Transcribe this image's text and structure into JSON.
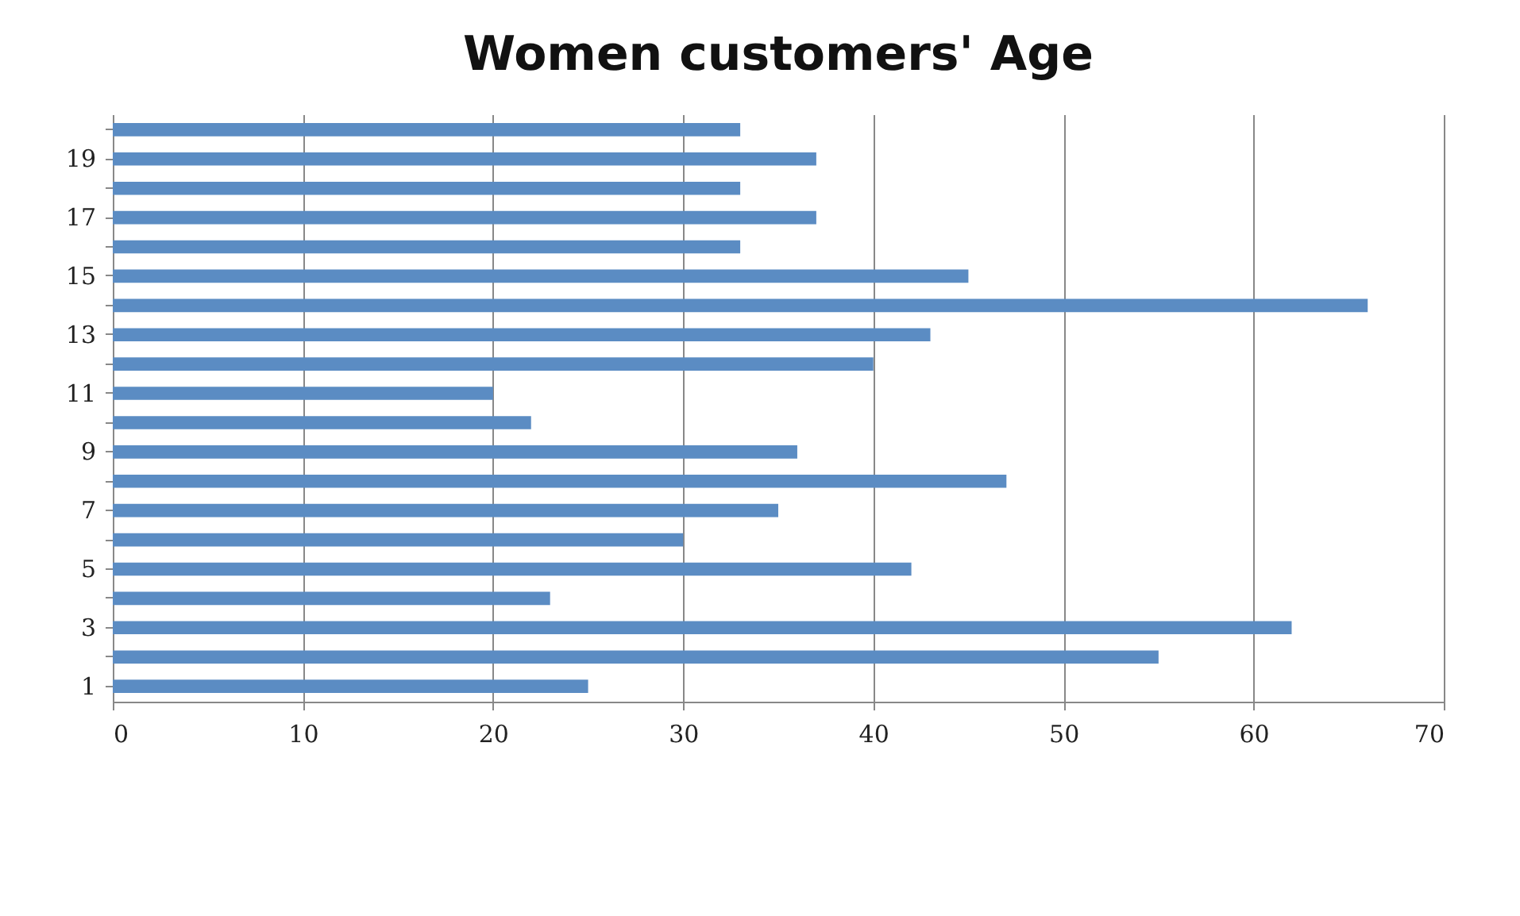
{
  "chart_data": {
    "type": "bar",
    "orientation": "horizontal",
    "title": "Women customers' Age",
    "categories": [
      null,
      "19",
      null,
      "17",
      null,
      "15",
      null,
      "13",
      null,
      "11",
      null,
      "9",
      null,
      "7",
      null,
      "5",
      null,
      "3",
      null,
      "1"
    ],
    "values": [
      33,
      37,
      33,
      37,
      33,
      45,
      66,
      43,
      40,
      20,
      22,
      36,
      47,
      35,
      30,
      42,
      23,
      62,
      55,
      25
    ],
    "color": "#5b8cc3",
    "xlim": [
      0,
      70
    ],
    "xticks": [
      0,
      10,
      20,
      30,
      40,
      50,
      60,
      70
    ],
    "grid": "x"
  }
}
